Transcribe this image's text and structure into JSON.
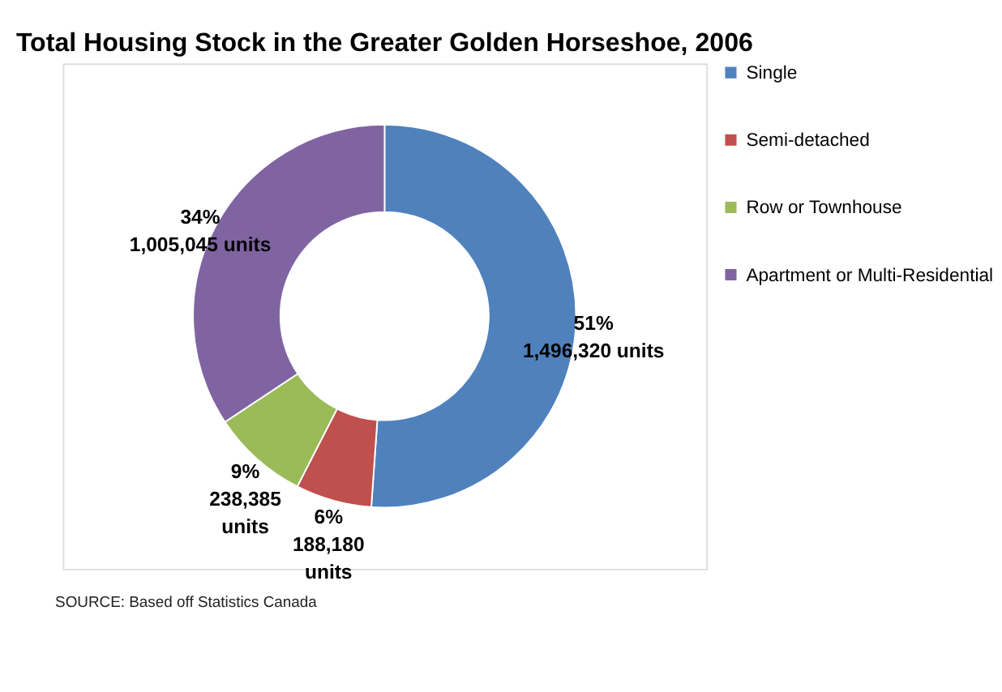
{
  "chart_data": {
    "type": "donut",
    "title": "Total Housing Stock in the Greater Golden Horseshoe, 2006",
    "categories": [
      "Single",
      "Semi-detached",
      "Row or Townhouse",
      "Apartment or Multi-Residential"
    ],
    "values": [
      1496320,
      188180,
      238385,
      1005045
    ],
    "colors": [
      "#4f81bd",
      "#c0504d",
      "#9bbb59",
      "#8064a2"
    ],
    "value_labels": [
      "51%\n1,496,320 units",
      "6%\n188,180\nunits",
      "9%\n238,385\nunits",
      "34%\n1,005,045 units"
    ],
    "legend": "right",
    "annotations": [
      "SOURCE: Based off Statistics Canada"
    ]
  }
}
